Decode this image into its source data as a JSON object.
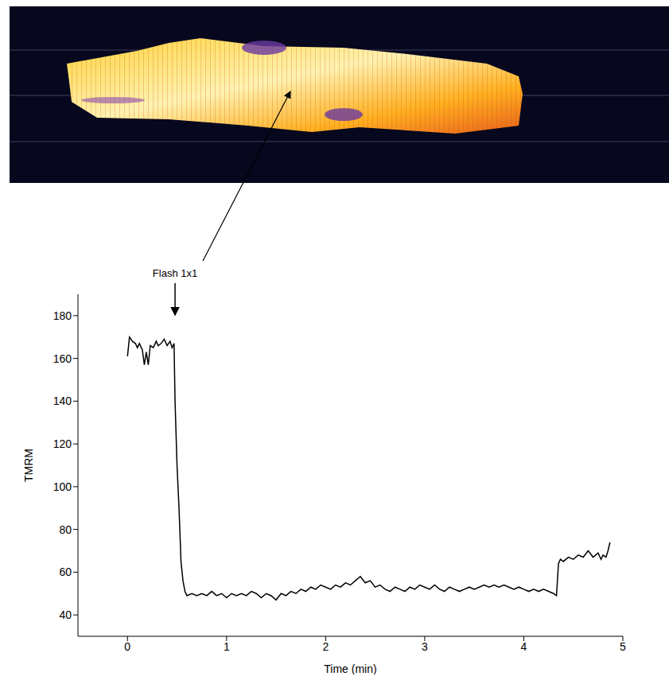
{
  "chart_data": {
    "type": "line",
    "x_label": "Time (min)",
    "y_label": "TMRM",
    "color": "#000000",
    "xlim": [
      -0.5,
      5
    ],
    "xticks": [
      0,
      1,
      2,
      3,
      4,
      5
    ],
    "ylim": [
      30,
      190
    ],
    "yticks": [
      40,
      60,
      80,
      100,
      120,
      140,
      160,
      180
    ],
    "annotations": [
      {
        "text": "Flash 1x1",
        "x": 0.48
      }
    ],
    "x": [
      0,
      0.02,
      0.05,
      0.08,
      0.1,
      0.12,
      0.15,
      0.17,
      0.19,
      0.21,
      0.23,
      0.26,
      0.29,
      0.31,
      0.34,
      0.37,
      0.4,
      0.43,
      0.45,
      0.47,
      0.48,
      0.5,
      0.52,
      0.54,
      0.56,
      0.58,
      0.6,
      0.65,
      0.7,
      0.75,
      0.8,
      0.85,
      0.9,
      0.95,
      1.0,
      1.05,
      1.1,
      1.15,
      1.2,
      1.25,
      1.3,
      1.35,
      1.4,
      1.45,
      1.5,
      1.55,
      1.6,
      1.65,
      1.7,
      1.75,
      1.8,
      1.85,
      1.9,
      1.95,
      2.0,
      2.05,
      2.1,
      2.15,
      2.2,
      2.25,
      2.3,
      2.35,
      2.4,
      2.45,
      2.5,
      2.55,
      2.6,
      2.65,
      2.7,
      2.75,
      2.8,
      2.85,
      2.9,
      2.95,
      3.0,
      3.05,
      3.1,
      3.15,
      3.2,
      3.25,
      3.3,
      3.35,
      3.4,
      3.45,
      3.5,
      3.55,
      3.6,
      3.65,
      3.7,
      3.75,
      3.8,
      3.85,
      3.9,
      3.95,
      4.0,
      4.05,
      4.1,
      4.15,
      4.2,
      4.25,
      4.3,
      4.33,
      4.35,
      4.37,
      4.4,
      4.45,
      4.5,
      4.55,
      4.6,
      4.65,
      4.7,
      4.75,
      4.78,
      4.8,
      4.83,
      4.85,
      4.87
    ],
    "values": [
      161,
      170,
      168,
      167,
      165,
      167,
      164,
      157,
      163,
      157,
      166,
      165,
      168,
      166,
      167,
      169,
      166,
      168,
      165,
      167,
      140,
      110,
      90,
      65,
      56,
      51,
      49,
      50,
      49,
      50,
      49,
      51,
      49,
      50,
      48,
      50,
      49,
      50,
      49,
      51,
      50,
      48,
      50,
      49,
      47,
      50,
      49,
      51,
      50,
      52,
      51,
      53,
      52,
      54,
      53,
      52,
      54,
      53,
      55,
      54,
      56,
      58,
      55,
      56,
      53,
      54,
      52,
      51,
      53,
      52,
      51,
      53,
      52,
      54,
      53,
      52,
      54,
      52,
      51,
      53,
      52,
      51,
      52,
      53,
      52,
      53,
      54,
      53,
      54,
      53,
      54,
      53,
      52,
      53,
      52,
      51,
      52,
      51,
      52,
      51,
      50,
      49,
      64,
      66,
      65,
      67,
      66,
      68,
      67,
      70,
      67,
      69,
      66,
      68,
      67,
      70,
      74
    ]
  }
}
